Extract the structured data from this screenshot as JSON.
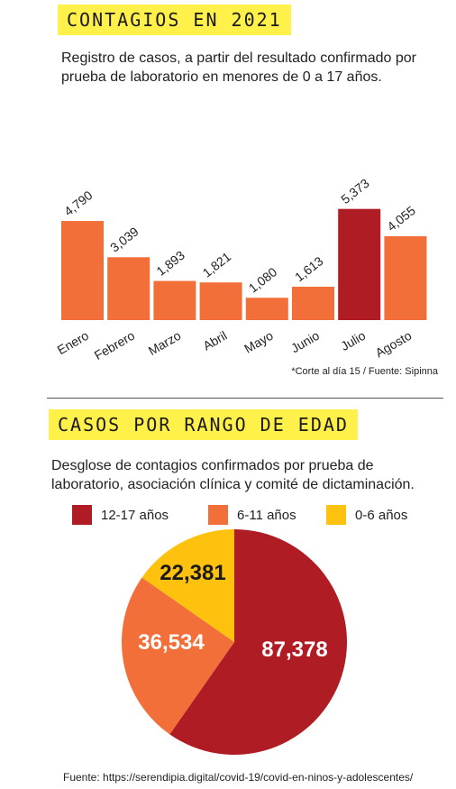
{
  "section1": {
    "title": "CONTAGIOS EN 2021",
    "subtitle": "Registro de casos, a partir del resultado confirmado por prueba de laboratorio en menores de 0 a 17 años.",
    "note": "*Corte al día 15 / Fuente: Sipinna"
  },
  "section2": {
    "title": "CASOS POR RANGO DE EDAD",
    "subtitle": "Desglose de contagios confirmados por prueba de laboratorio, asociación clínica y comité de dictaminación."
  },
  "source": "Fuente: https://serendipia.digital/covid-19/covid-en-ninos-y-adolescentes/",
  "colors": {
    "orange": "#f26f3a",
    "dark_red": "#b01c23",
    "yellow": "#fec10e"
  },
  "chart_data": [
    {
      "type": "bar",
      "categories": [
        "Enero",
        "Febrero",
        "Marzo",
        "Abril",
        "Mayo",
        "Junio",
        "Julio",
        "Agosto"
      ],
      "values": [
        4790,
        3039,
        1893,
        1821,
        1080,
        1613,
        5373,
        4055
      ],
      "value_labels": [
        "4,790",
        "3,039",
        "1,893",
        "1,821",
        "1,080",
        "1,613",
        "5,373",
        "4,055"
      ],
      "highlight": "Julio",
      "title": "CONTAGIOS EN 2021",
      "xlabel": "",
      "ylabel": "",
      "grid": false
    },
    {
      "type": "pie",
      "labels": [
        "12-17 años",
        "6-11 años",
        "0-6 años"
      ],
      "values": [
        87378,
        36534,
        22381
      ],
      "value_labels": [
        "87,378",
        "36,534",
        "22,381"
      ],
      "colors": [
        "#b01c23",
        "#f26f3a",
        "#fec10e"
      ],
      "title": "CASOS POR RANGO DE EDAD",
      "legend_position": "top"
    }
  ]
}
